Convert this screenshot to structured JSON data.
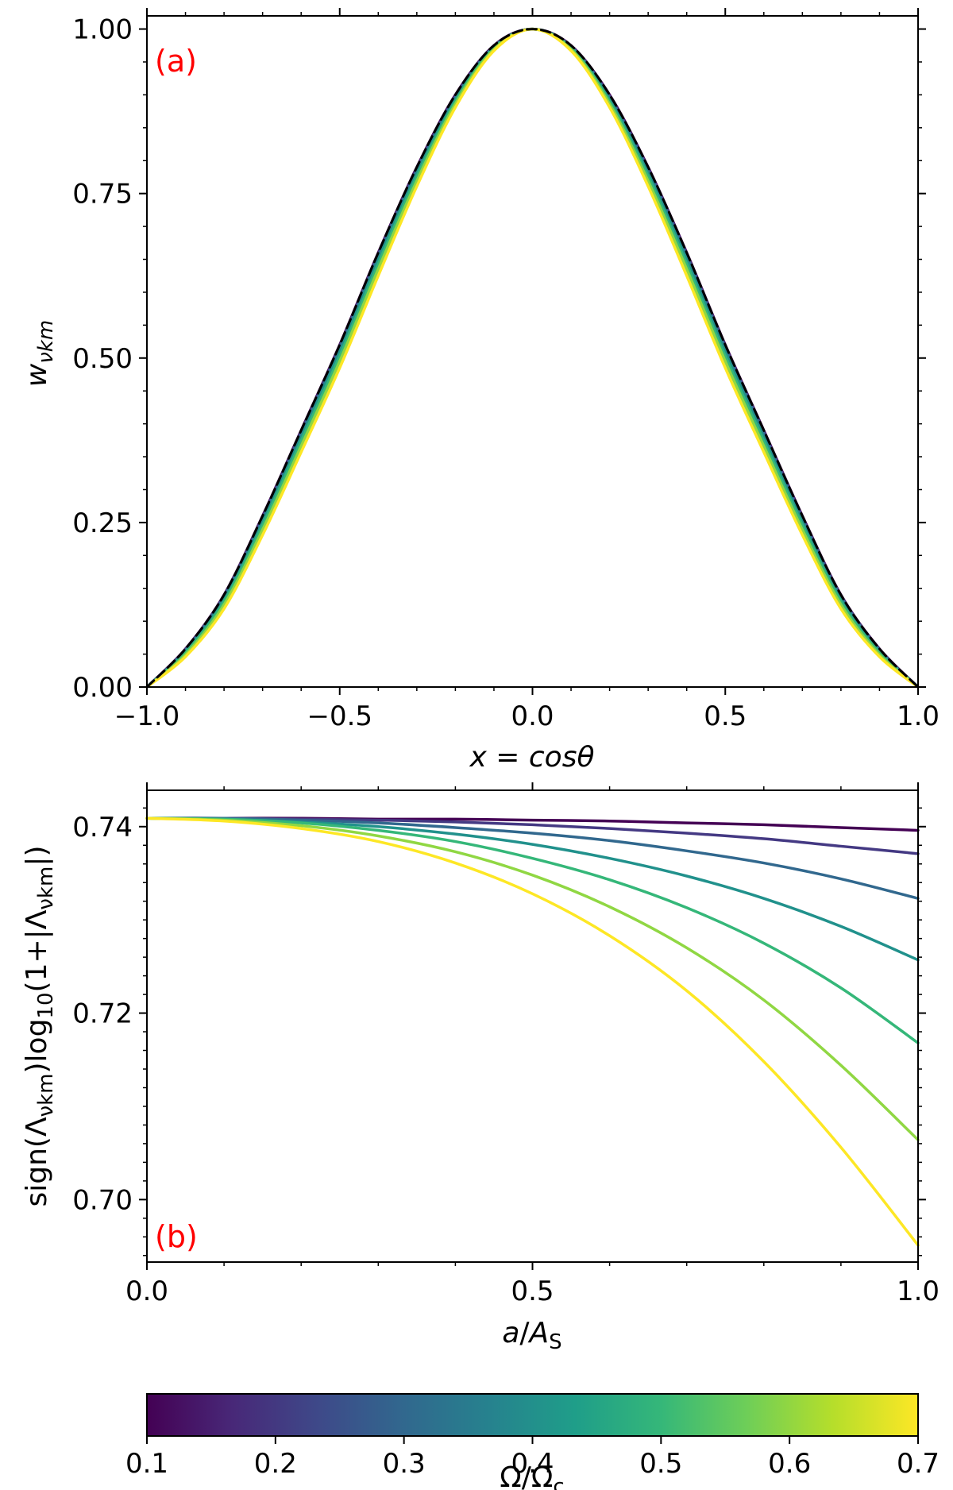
{
  "chart_data": [
    {
      "panel": "(a)",
      "type": "line",
      "xlabel": "x = cosθ",
      "ylabel": "w_νkm",
      "xlim": [
        -1.0,
        1.0
      ],
      "ylim": [
        0.0,
        1.02
      ],
      "xticks": [
        "−1.0",
        "−0.5",
        "0.0",
        "0.5",
        "1.0"
      ],
      "yticks": [
        "0.00",
        "0.25",
        "0.50",
        "0.75",
        "1.00"
      ],
      "grid": false,
      "x": [
        -1.0,
        -0.9,
        -0.8,
        -0.7,
        -0.6,
        -0.5,
        -0.4,
        -0.3,
        -0.2,
        -0.1,
        0.0,
        0.1,
        0.2,
        0.3,
        0.4,
        0.5,
        0.6,
        0.7,
        0.8,
        0.9,
        1.0
      ],
      "series": [
        {
          "color": "#440154",
          "values": [
            0.0,
            0.058,
            0.14,
            0.26,
            0.39,
            0.52,
            0.66,
            0.79,
            0.9,
            0.975,
            1.0,
            0.975,
            0.9,
            0.79,
            0.66,
            0.52,
            0.39,
            0.26,
            0.14,
            0.058,
            0.0
          ]
        },
        {
          "color": "#443983",
          "values": [
            0.0,
            0.057,
            0.139,
            0.258,
            0.388,
            0.518,
            0.658,
            0.788,
            0.898,
            0.974,
            1.0,
            0.974,
            0.898,
            0.788,
            0.658,
            0.518,
            0.388,
            0.258,
            0.139,
            0.057,
            0.0
          ]
        },
        {
          "color": "#31688e",
          "values": [
            0.0,
            0.056,
            0.137,
            0.255,
            0.385,
            0.515,
            0.655,
            0.785,
            0.896,
            0.973,
            1.0,
            0.973,
            0.896,
            0.785,
            0.655,
            0.515,
            0.385,
            0.255,
            0.137,
            0.056,
            0.0
          ]
        },
        {
          "color": "#21918c",
          "values": [
            0.0,
            0.054,
            0.134,
            0.251,
            0.38,
            0.51,
            0.65,
            0.781,
            0.893,
            0.972,
            1.0,
            0.972,
            0.893,
            0.781,
            0.65,
            0.51,
            0.38,
            0.251,
            0.134,
            0.054,
            0.0
          ]
        },
        {
          "color": "#35b779",
          "values": [
            0.0,
            0.052,
            0.13,
            0.246,
            0.374,
            0.503,
            0.643,
            0.776,
            0.89,
            0.971,
            1.0,
            0.971,
            0.89,
            0.776,
            0.643,
            0.503,
            0.374,
            0.246,
            0.13,
            0.052,
            0.0
          ]
        },
        {
          "color": "#90d743",
          "values": [
            0.0,
            0.049,
            0.125,
            0.239,
            0.366,
            0.495,
            0.635,
            0.769,
            0.886,
            0.969,
            1.0,
            0.969,
            0.886,
            0.769,
            0.635,
            0.495,
            0.366,
            0.239,
            0.125,
            0.049,
            0.0
          ]
        },
        {
          "color": "#fde725",
          "values": [
            0.0,
            0.046,
            0.119,
            0.231,
            0.357,
            0.485,
            0.625,
            0.761,
            0.881,
            0.967,
            1.0,
            0.967,
            0.881,
            0.761,
            0.625,
            0.485,
            0.357,
            0.231,
            0.119,
            0.046,
            0.0
          ]
        },
        {
          "color": "#000000",
          "dashed": true,
          "values": [
            0.0,
            0.058,
            0.14,
            0.26,
            0.39,
            0.52,
            0.66,
            0.79,
            0.9,
            0.975,
            1.0,
            0.975,
            0.9,
            0.79,
            0.66,
            0.52,
            0.39,
            0.26,
            0.14,
            0.058,
            0.0
          ]
        }
      ]
    },
    {
      "panel": "(b)",
      "type": "line",
      "xlabel": "a/A_S",
      "ylabel": "sign(Λνkm)log₁₀(1+|Λνkm|)",
      "xlim": [
        0.0,
        1.0
      ],
      "ylim": [
        0.6933,
        0.7439
      ],
      "xticks": [
        "0.0",
        "0.5",
        "1.0"
      ],
      "yticks": [
        "0.70",
        "0.72",
        "0.74"
      ],
      "grid": false,
      "x": [
        0.0,
        0.1,
        0.2,
        0.3,
        0.4,
        0.5,
        0.6,
        0.7,
        0.8,
        0.9,
        1.0
      ],
      "series": [
        {
          "color": "#440154",
          "values": [
            0.7409,
            0.7409,
            0.7409,
            0.7408,
            0.7408,
            0.7407,
            0.7406,
            0.7404,
            0.7402,
            0.7399,
            0.7396
          ]
        },
        {
          "color": "#443983",
          "values": [
            0.7409,
            0.7409,
            0.7408,
            0.7407,
            0.7405,
            0.7402,
            0.7398,
            0.7393,
            0.7387,
            0.7379,
            0.7371
          ]
        },
        {
          "color": "#31688e",
          "values": [
            0.7409,
            0.7409,
            0.7407,
            0.7404,
            0.7399,
            0.7393,
            0.7385,
            0.7374,
            0.7361,
            0.7344,
            0.7323
          ]
        },
        {
          "color": "#21918c",
          "values": [
            0.7409,
            0.7408,
            0.7405,
            0.74,
            0.7392,
            0.7381,
            0.7366,
            0.7347,
            0.7323,
            0.7293,
            0.7257
          ]
        },
        {
          "color": "#35b779",
          "values": [
            0.7409,
            0.7408,
            0.7404,
            0.7396,
            0.7384,
            0.7366,
            0.7343,
            0.7313,
            0.7275,
            0.7227,
            0.7168
          ]
        },
        {
          "color": "#90d743",
          "values": [
            0.7409,
            0.7407,
            0.7401,
            0.739,
            0.7373,
            0.7348,
            0.7314,
            0.727,
            0.7214,
            0.7144,
            0.7064
          ]
        },
        {
          "color": "#fde725",
          "values": [
            0.7409,
            0.7406,
            0.7398,
            0.7384,
            0.7361,
            0.7328,
            0.7283,
            0.7224,
            0.7148,
            0.7056,
            0.6951
          ]
        }
      ]
    }
  ],
  "colorbar": {
    "label": "Ω/Ωc",
    "range": [
      0.1,
      0.7
    ],
    "ticks": [
      "0.1",
      "0.2",
      "0.3",
      "0.4",
      "0.5",
      "0.6",
      "0.7"
    ],
    "colormap": [
      "#440154",
      "#482878",
      "#3e4989",
      "#31688e",
      "#26828e",
      "#1f9e89",
      "#35b779",
      "#6ece58",
      "#b5de2b",
      "#fde725"
    ]
  }
}
